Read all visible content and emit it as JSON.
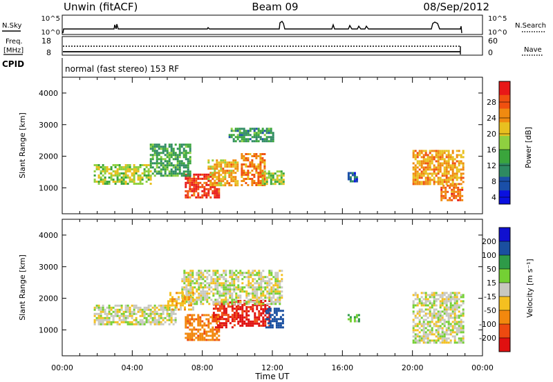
{
  "header": {
    "station": "Unwin (fitACF)",
    "beam": "Beam 09",
    "date": "08/Sep/2012"
  },
  "top_panels": {
    "nsky_label": "N.Sky",
    "nsearch_label": "N.Search",
    "nsky_ticks": [
      "10^5",
      "10^0"
    ],
    "nsearch_ticks": [
      "10^5",
      "10^0"
    ],
    "freq_label_1": "Freq.",
    "freq_label_2": "[MHz]",
    "freq_ticks": [
      "18",
      "8"
    ],
    "nave_label": "Nave",
    "nave_ticks": [
      "60",
      "0"
    ],
    "cpid_label": "CPID",
    "cpid_text": "normal (fast stereo) 153 RF"
  },
  "colors": {
    "power": [
      "#0a10e0",
      "#1a4fa8",
      "#2e8a62",
      "#3aa53c",
      "#8fd040",
      "#e8c020",
      "#f08a10",
      "#f05010",
      "#e81818"
    ],
    "velocity": [
      "#e01010",
      "#ee4a10",
      "#f2880e",
      "#f4c020",
      "#c8c8c0",
      "#74d034",
      "#2e9a48",
      "#1a4fa0",
      "#1010d0"
    ]
  },
  "chart_data": [
    {
      "type": "heatmap",
      "name": "power",
      "ylabel": "Slant Range [km]",
      "xlabel": "",
      "xlim": [
        0,
        24
      ],
      "ylim": [
        180,
        4500
      ],
      "yticks": [
        "1000",
        "2000",
        "3000",
        "4000"
      ],
      "xticks": [
        "00:00",
        "04:00",
        "08:00",
        "12:00",
        "16:00",
        "20:00",
        "00:00"
      ],
      "colorbar": {
        "label": "Power [dB]",
        "tick_labels": [
          "28",
          "24",
          "20",
          "16",
          "12",
          "8",
          "4"
        ],
        "range": [
          0,
          30
        ]
      },
      "regions": [
        {
          "t0": 7.0,
          "t1": 9.0,
          "r0": 680,
          "r1": 1450,
          "value": 27
        },
        {
          "t0": 8.3,
          "t1": 10.0,
          "r0": 1050,
          "r1": 1900,
          "value": 20
        },
        {
          "t0": 10.2,
          "t1": 11.6,
          "r0": 1100,
          "r1": 2100,
          "value": 23
        },
        {
          "t0": 11.4,
          "t1": 12.6,
          "r0": 1150,
          "r1": 1550,
          "value": 15
        },
        {
          "t0": 1.8,
          "t1": 5.0,
          "r0": 1150,
          "r1": 1750,
          "value": 16
        },
        {
          "t0": 5.0,
          "t1": 7.3,
          "r0": 1400,
          "r1": 2400,
          "value": 11
        },
        {
          "t0": 9.5,
          "t1": 12.0,
          "r0": 2500,
          "r1": 2900,
          "value": 10
        },
        {
          "t0": 20.0,
          "t1": 22.9,
          "r0": 1100,
          "r1": 2200,
          "value": 21
        },
        {
          "t0": 21.6,
          "t1": 22.9,
          "r0": 600,
          "r1": 1100,
          "value": 24
        },
        {
          "t0": 16.3,
          "t1": 16.8,
          "r0": 1200,
          "r1": 1500,
          "value": 6
        }
      ]
    },
    {
      "type": "heatmap",
      "name": "velocity",
      "ylabel": "Slant Range [km]",
      "xlabel": "Time UT",
      "xlim": [
        0,
        24
      ],
      "ylim": [
        180,
        4500
      ],
      "yticks": [
        "1000",
        "2000",
        "3000",
        "4000"
      ],
      "xticks": [
        "00:00",
        "04:00",
        "08:00",
        "12:00",
        "16:00",
        "20:00",
        "00:00"
      ],
      "colorbar": {
        "label": "Velocity [m s⁻¹]",
        "tick_labels": [
          "200",
          "100",
          "50",
          "15",
          "-15",
          "-50",
          "-100",
          "-200"
        ],
        "range": [
          -250,
          250
        ]
      },
      "regions": [
        {
          "t0": 7.0,
          "t1": 9.0,
          "r0": 680,
          "r1": 1500,
          "value": -80
        },
        {
          "t0": 8.6,
          "t1": 10.0,
          "r0": 1050,
          "r1": 1900,
          "value": -200
        },
        {
          "t0": 10.0,
          "t1": 11.8,
          "r0": 1150,
          "r1": 1950,
          "value": -220
        },
        {
          "t0": 11.6,
          "t1": 12.6,
          "r0": 1100,
          "r1": 1700,
          "value": 150
        },
        {
          "t0": 1.8,
          "t1": 6.5,
          "r0": 1200,
          "r1": 1800,
          "value": 0
        },
        {
          "t0": 6.8,
          "t1": 12.5,
          "r0": 1800,
          "r1": 2900,
          "value": 0
        },
        {
          "t0": 6.0,
          "t1": 7.5,
          "r0": 1650,
          "r1": 2200,
          "value": -30
        },
        {
          "t0": 20.0,
          "t1": 22.9,
          "r0": 600,
          "r1": 2200,
          "value": 0
        },
        {
          "t0": 16.3,
          "t1": 16.9,
          "r0": 1250,
          "r1": 1500,
          "value": 40
        }
      ]
    }
  ]
}
